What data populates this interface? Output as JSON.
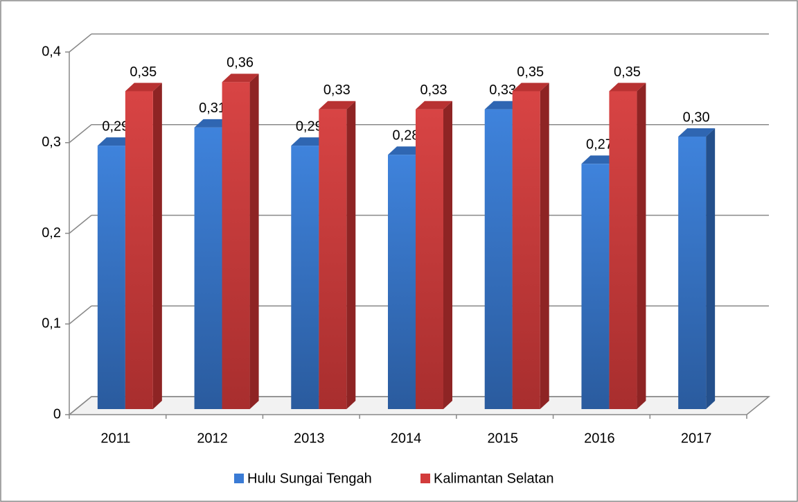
{
  "chart_data": {
    "type": "bar3d",
    "categories": [
      "2011",
      "2012",
      "2013",
      "2014",
      "2015",
      "2016",
      "2017"
    ],
    "series": [
      {
        "name": "Hulu Sungai Tengah",
        "color": "#3a7bd5",
        "values": [
          0.29,
          0.31,
          0.29,
          0.28,
          0.33,
          0.27,
          0.3
        ],
        "value_labels": [
          "0,29",
          "0,31",
          "0,29",
          "0,28",
          "0,33",
          "0,27",
          "0,30"
        ]
      },
      {
        "name": "Kalimantan Selatan",
        "color": "#d23b3b",
        "values": [
          0.35,
          0.36,
          0.33,
          0.33,
          0.35,
          0.35,
          null
        ],
        "value_labels": [
          "0,35",
          "0,36",
          "0,33",
          "0,33",
          "0,35",
          "0,35",
          null
        ]
      }
    ],
    "ylim": [
      0,
      0.4
    ],
    "yticks": [
      0,
      {
        "value": 0.1,
        "label": "0,1"
      },
      {
        "value": 0.2,
        "label": "0,2"
      },
      {
        "value": 0.3,
        "label": "0,3"
      },
      {
        "value": 0.4,
        "label": "0,4"
      }
    ],
    "grid": true,
    "legend": "bottom"
  }
}
